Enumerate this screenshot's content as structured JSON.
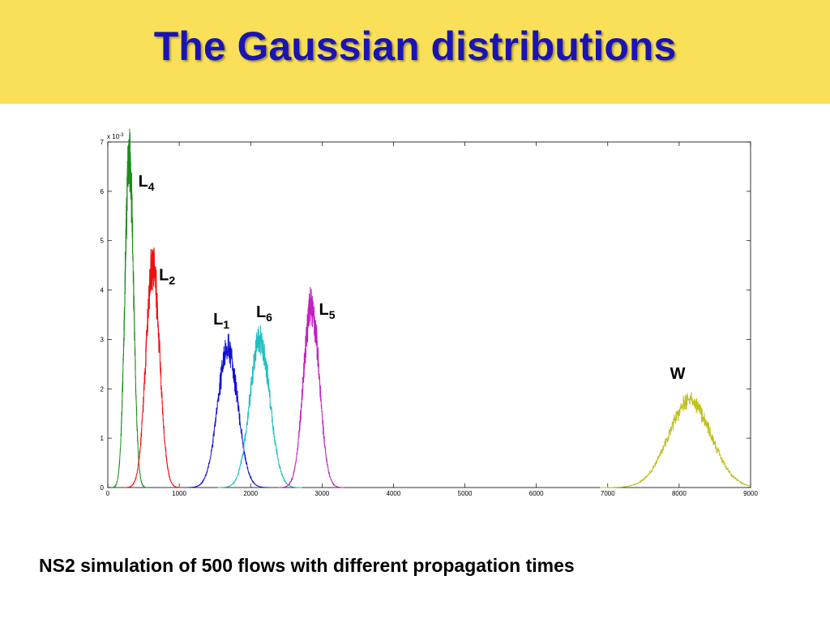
{
  "slide": {
    "title": "The Gaussian distributions",
    "caption": "NS2 simulation of 500 flows with different propagation times",
    "title_color": "#1a14b4",
    "header_bg": "#fae058"
  },
  "chart_data": {
    "type": "line",
    "xlim": [
      0,
      9000
    ],
    "ylim": [
      0,
      7
    ],
    "x_ticks": [
      "0",
      "1000",
      "2000",
      "3000",
      "4000",
      "5000",
      "6000",
      "7000",
      "8000",
      "9000"
    ],
    "y_ticks": [
      "0",
      "1",
      "2",
      "3",
      "4",
      "5",
      "6",
      "7"
    ],
    "y_multiplier": "x 10",
    "y_multiplier_exp": "-3",
    "grid": false,
    "series": [
      {
        "name": "L",
        "sub": "4",
        "color": "#1e8c1e",
        "mean": 300,
        "sd": 60,
        "peak": 6.7
      },
      {
        "name": "L",
        "sub": "2",
        "color": "#ee1010",
        "mean": 630,
        "sd": 95,
        "peak": 4.5
      },
      {
        "name": "L",
        "sub": "1",
        "color": "#1010d0",
        "mean": 1680,
        "sd": 140,
        "peak": 2.8
      },
      {
        "name": "L",
        "sub": "6",
        "color": "#20c0c0",
        "mean": 2130,
        "sd": 140,
        "peak": 3.0
      },
      {
        "name": "L",
        "sub": "5",
        "color": "#c020c0",
        "mean": 2850,
        "sd": 110,
        "peak": 3.7
      },
      {
        "name": "W",
        "sub": "",
        "color": "#c0c020",
        "mean": 8150,
        "sd": 300,
        "peak": 1.75
      }
    ],
    "labels": [
      {
        "series": 0,
        "x": 540,
        "y": 6.1
      },
      {
        "series": 1,
        "x": 830,
        "y": 4.2
      },
      {
        "series": 2,
        "x": 1590,
        "y": 3.3
      },
      {
        "series": 3,
        "x": 2190,
        "y": 3.45
      },
      {
        "series": 4,
        "x": 3070,
        "y": 3.5
      },
      {
        "series": 5,
        "x": 7980,
        "y": 2.2
      }
    ]
  }
}
